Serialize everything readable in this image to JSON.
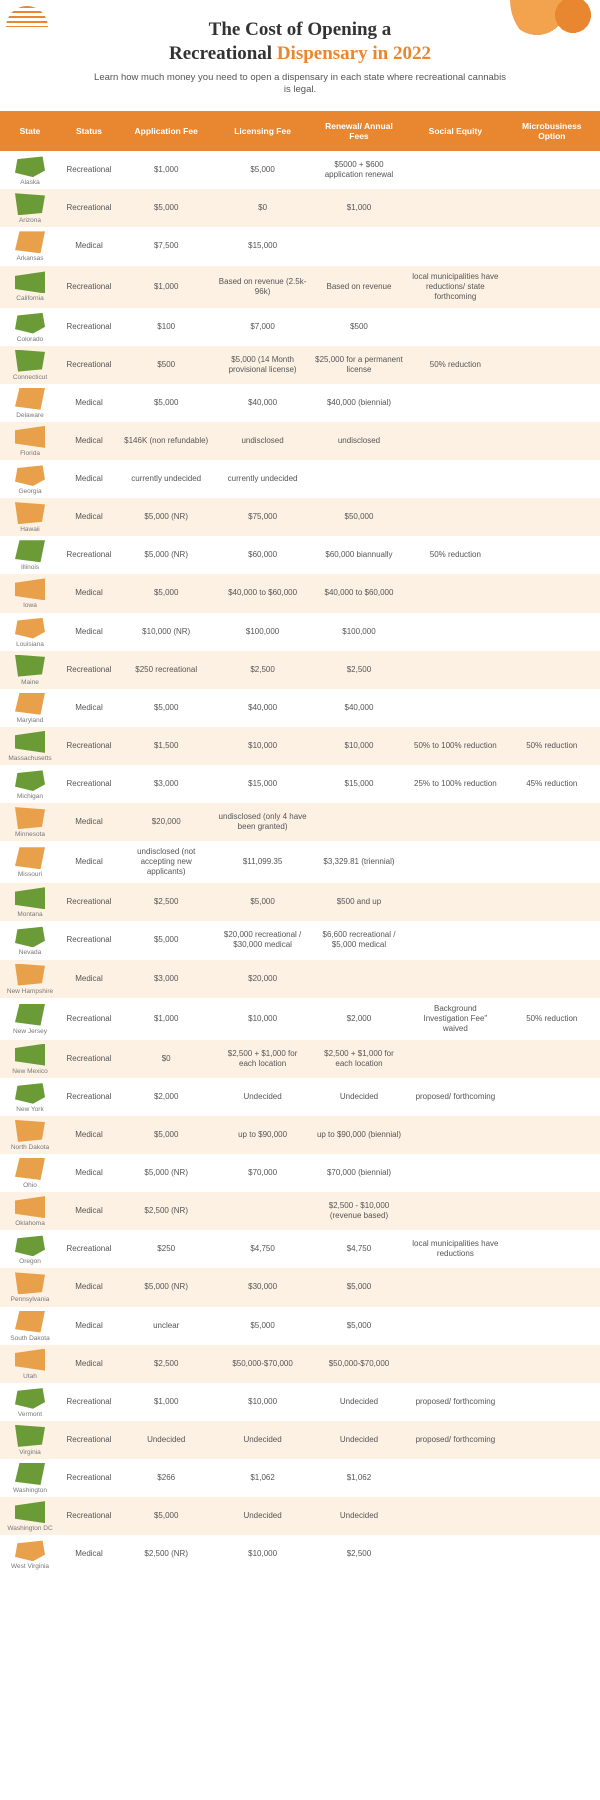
{
  "title_line1": "The Cost of Opening a",
  "title_line2_prefix": "Recreational ",
  "title_line2_accent": "Dispensary in 2022",
  "subtitle": "Learn how much money you need to open a dispensary in each state where recreational cannabis is legal.",
  "columns": [
    "State",
    "Status",
    "Application Fee",
    "Licensing Fee",
    "Renewal/\nAnnual Fees",
    "Social Equity",
    "Microbusiness Option"
  ],
  "state_shape_colors": {
    "green": "#6b9b37",
    "orange": "#e8a14a"
  },
  "rows": [
    {
      "state": "Alaska",
      "shape": "g",
      "status": "Recreational",
      "app": "$1,000",
      "lic": "$5,000",
      "ren": "$5000 + $600 application renewal",
      "soc": "",
      "micro": ""
    },
    {
      "state": "Arizona",
      "shape": "g",
      "status": "Recreational",
      "app": "$5,000",
      "lic": "$0",
      "ren": "$1,000",
      "soc": "",
      "micro": ""
    },
    {
      "state": "Arkansas",
      "shape": "o",
      "status": "Medical",
      "app": "$7,500",
      "lic": "$15,000",
      "ren": "",
      "soc": "",
      "micro": ""
    },
    {
      "state": "California",
      "shape": "g",
      "status": "Recreational",
      "app": "$1,000",
      "lic": "Based on revenue (2.5k-96k)",
      "ren": "Based on revenue",
      "soc": "local municipalities have reductions/ state forthcoming",
      "micro": ""
    },
    {
      "state": "Colorado",
      "shape": "g",
      "status": "Recreational",
      "app": "$100",
      "lic": "$7,000",
      "ren": "$500",
      "soc": "",
      "micro": ""
    },
    {
      "state": "Connecticut",
      "shape": "g",
      "status": "Recreational",
      "app": "$500",
      "lic": "$5,000 (14 Month provisional license)",
      "ren": "$25,000 for a permanent license",
      "soc": "50% reduction",
      "micro": ""
    },
    {
      "state": "Delaware",
      "shape": "o",
      "status": "Medical",
      "app": "$5,000",
      "lic": "$40,000",
      "ren": "$40,000 (biennial)",
      "soc": "",
      "micro": ""
    },
    {
      "state": "Florida",
      "shape": "o",
      "status": "Medical",
      "app": "$146K (non refundable)",
      "lic": "undisclosed",
      "ren": "undisclosed",
      "soc": "",
      "micro": ""
    },
    {
      "state": "Georgia",
      "shape": "o",
      "status": "Medical",
      "app": "currently undecided",
      "lic": "currently undecided",
      "ren": "",
      "soc": "",
      "micro": ""
    },
    {
      "state": "Hawaii",
      "shape": "o",
      "status": "Medical",
      "app": "$5,000 (NR)",
      "lic": "$75,000",
      "ren": "$50,000",
      "soc": "",
      "micro": ""
    },
    {
      "state": "Illinois",
      "shape": "g",
      "status": "Recreational",
      "app": "$5,000 (NR)",
      "lic": "$60,000",
      "ren": "$60,000 biannually",
      "soc": "50% reduction",
      "micro": ""
    },
    {
      "state": "Iowa",
      "shape": "o",
      "status": "Medical",
      "app": "$5,000",
      "lic": "$40,000 to $60,000",
      "ren": "$40,000 to $60,000",
      "soc": "",
      "micro": ""
    },
    {
      "state": "Louisiana",
      "shape": "o",
      "status": "Medical",
      "app": "$10,000 (NR)",
      "lic": "$100,000",
      "ren": "$100,000",
      "soc": "",
      "micro": ""
    },
    {
      "state": "Maine",
      "shape": "g",
      "status": "Recreational",
      "app": "$250 recreational",
      "lic": "$2,500",
      "ren": "$2,500",
      "soc": "",
      "micro": ""
    },
    {
      "state": "Maryland",
      "shape": "o",
      "status": "Medical",
      "app": "$5,000",
      "lic": "$40,000",
      "ren": "$40,000",
      "soc": "",
      "micro": ""
    },
    {
      "state": "Massachusetts",
      "shape": "g",
      "status": "Recreational",
      "app": "$1,500",
      "lic": "$10,000",
      "ren": "$10,000",
      "soc": "50% to 100% reduction",
      "micro": "50% reduction"
    },
    {
      "state": "Michigan",
      "shape": "g",
      "status": "Recreational",
      "app": "$3,000",
      "lic": "$15,000",
      "ren": "$15,000",
      "soc": "25% to 100% reduction",
      "micro": "45% reduction"
    },
    {
      "state": "Minnesota",
      "shape": "o",
      "status": "Medical",
      "app": "$20,000",
      "lic": "undisclosed (only 4 have been granted)",
      "ren": "",
      "soc": "",
      "micro": ""
    },
    {
      "state": "Missouri",
      "shape": "o",
      "status": "Medical",
      "app": "undisclosed (not accepting new applicants)",
      "lic": "$11,099.35",
      "ren": "$3,329.81 (triennial)",
      "soc": "",
      "micro": ""
    },
    {
      "state": "Montana",
      "shape": "g",
      "status": "Recreational",
      "app": "$2,500",
      "lic": "$5,000",
      "ren": "$500 and up",
      "soc": "",
      "micro": ""
    },
    {
      "state": "Nevada",
      "shape": "g",
      "status": "Recreational",
      "app": "$5,000",
      "lic": "$20,000 recreational / $30,000 medical",
      "ren": "$6,600 recreational / $5,000 medical",
      "soc": "",
      "micro": ""
    },
    {
      "state": "New Hampshire",
      "shape": "o",
      "status": "Medical",
      "app": "$3,000",
      "lic": "$20,000",
      "ren": "",
      "soc": "",
      "micro": ""
    },
    {
      "state": "New Jersey",
      "shape": "g",
      "status": "Recreational",
      "app": "$1,000",
      "lic": "$10,000",
      "ren": "$2,000",
      "soc": "Background Investigation Fee\" waived",
      "micro": "50% reduction"
    },
    {
      "state": "New Mexico",
      "shape": "g",
      "status": "Recreational",
      "app": "$0",
      "lic": "$2,500 + $1,000 for each location",
      "ren": "$2,500 + $1,000 for each location",
      "soc": "",
      "micro": ""
    },
    {
      "state": "New York",
      "shape": "g",
      "status": "Recreational",
      "app": "$2,000",
      "lic": "Undecided",
      "ren": "Undecided",
      "soc": "proposed/ forthcoming",
      "micro": ""
    },
    {
      "state": "North Dakota",
      "shape": "o",
      "status": "Medical",
      "app": "$5,000",
      "lic": "up to $90,000",
      "ren": "up to $90,000 (biennial)",
      "soc": "",
      "micro": ""
    },
    {
      "state": "Ohio",
      "shape": "o",
      "status": "Medical",
      "app": "$5,000 (NR)",
      "lic": "$70,000",
      "ren": "$70,000 (biennial)",
      "soc": "",
      "micro": ""
    },
    {
      "state": "Oklahoma",
      "shape": "o",
      "status": "Medical",
      "app": "$2,500 (NR)",
      "lic": "",
      "ren": "$2,500 - $10,000 (revenue based)",
      "soc": "",
      "micro": ""
    },
    {
      "state": "Oregon",
      "shape": "g",
      "status": "Recreational",
      "app": "$250",
      "lic": "$4,750",
      "ren": "$4,750",
      "soc": "local municipalities have reductions",
      "micro": ""
    },
    {
      "state": "Pennsylvania",
      "shape": "o",
      "status": "Medical",
      "app": "$5,000 (NR)",
      "lic": "$30,000",
      "ren": "$5,000",
      "soc": "",
      "micro": ""
    },
    {
      "state": "South Dakota",
      "shape": "o",
      "status": "Medical",
      "app": "unclear",
      "lic": "$5,000",
      "ren": "$5,000",
      "soc": "",
      "micro": ""
    },
    {
      "state": "Utah",
      "shape": "o",
      "status": "Medical",
      "app": "$2,500",
      "lic": "$50,000-$70,000",
      "ren": "$50,000-$70,000",
      "soc": "",
      "micro": ""
    },
    {
      "state": "Vermont",
      "shape": "g",
      "status": "Recreational",
      "app": "$1,000",
      "lic": "$10,000",
      "ren": "Undecided",
      "soc": "proposed/ forthcoming",
      "micro": ""
    },
    {
      "state": "Virginia",
      "shape": "g",
      "status": "Recreational",
      "app": "Undecided",
      "lic": "Undecided",
      "ren": "Undecided",
      "soc": "proposed/ forthcoming",
      "micro": ""
    },
    {
      "state": "Washington",
      "shape": "g",
      "status": "Recreational",
      "app": "$266",
      "lic": "$1,062",
      "ren": "$1,062",
      "soc": "",
      "micro": ""
    },
    {
      "state": "Washington DC",
      "shape": "g",
      "status": "Recreational",
      "app": "$5,000",
      "lic": "Undecided",
      "ren": "Undecided",
      "soc": "",
      "micro": ""
    },
    {
      "state": "West Virginia",
      "shape": "o",
      "status": "Medical",
      "app": "$2,500 (NR)",
      "lic": "$10,000",
      "ren": "$2,500",
      "soc": "",
      "micro": ""
    }
  ]
}
